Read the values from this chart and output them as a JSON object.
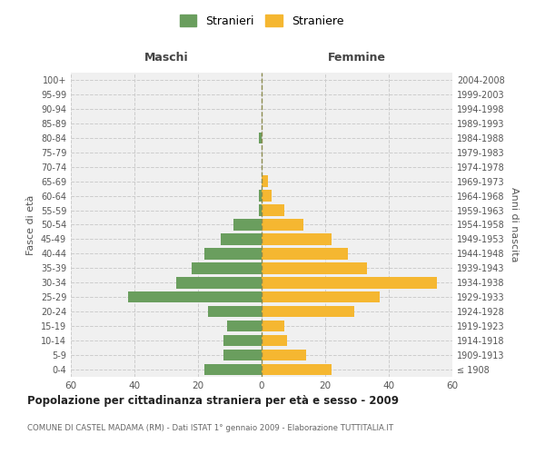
{
  "age_groups": [
    "100+",
    "95-99",
    "90-94",
    "85-89",
    "80-84",
    "75-79",
    "70-74",
    "65-69",
    "60-64",
    "55-59",
    "50-54",
    "45-49",
    "40-44",
    "35-39",
    "30-34",
    "25-29",
    "20-24",
    "15-19",
    "10-14",
    "5-9",
    "0-4"
  ],
  "birth_years": [
    "≤ 1908",
    "1909-1913",
    "1914-1918",
    "1919-1923",
    "1924-1928",
    "1929-1933",
    "1934-1938",
    "1939-1943",
    "1944-1948",
    "1949-1953",
    "1954-1958",
    "1959-1963",
    "1964-1968",
    "1969-1973",
    "1974-1978",
    "1979-1983",
    "1984-1988",
    "1989-1993",
    "1994-1998",
    "1999-2003",
    "2004-2008"
  ],
  "males": [
    0,
    0,
    0,
    0,
    1,
    0,
    0,
    0,
    1,
    1,
    9,
    13,
    18,
    22,
    27,
    42,
    17,
    11,
    12,
    12,
    18
  ],
  "females": [
    0,
    0,
    0,
    0,
    0,
    0,
    0,
    2,
    3,
    7,
    13,
    22,
    27,
    33,
    55,
    37,
    29,
    7,
    8,
    14,
    22
  ],
  "male_color": "#6a9e5e",
  "female_color": "#f5b731",
  "background_color": "#f0f0f0",
  "grid_color": "#cccccc",
  "title": "Popolazione per cittadinanza straniera per età e sesso - 2009",
  "subtitle": "COMUNE DI CASTEL MADAMA (RM) - Dati ISTAT 1° gennaio 2009 - Elaborazione TUTTITALIA.IT",
  "ylabel_left": "Fasce di età",
  "ylabel_right": "Anni di nascita",
  "label_maschi": "Maschi",
  "label_femmine": "Femmine",
  "legend_male": "Stranieri",
  "legend_female": "Straniere",
  "xlim": 60,
  "dashed_line_color": "#8b8b4e"
}
